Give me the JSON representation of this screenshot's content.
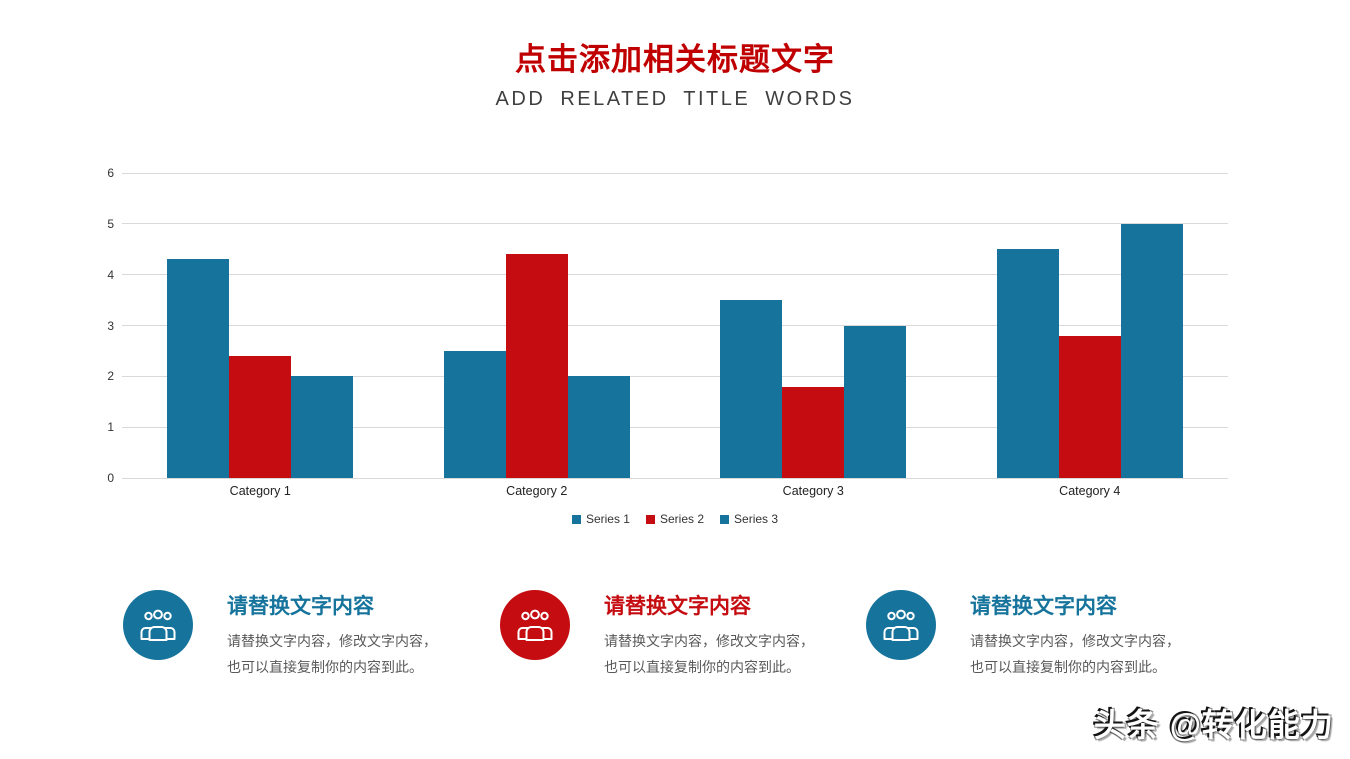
{
  "header": {
    "title": "点击添加相关标题文字",
    "subtitle": "ADD RELATED TITLE WORDS"
  },
  "chart_data": {
    "type": "bar",
    "title": "",
    "xlabel": "",
    "ylabel": "",
    "categories": [
      "Category 1",
      "Category 2",
      "Category 3",
      "Category 4"
    ],
    "series": [
      {
        "name": "Series 1",
        "color": "#16749c",
        "values": [
          4.3,
          2.5,
          3.5,
          4.5
        ]
      },
      {
        "name": "Series 2",
        "color": "#c50d11",
        "values": [
          2.4,
          4.4,
          1.8,
          2.8
        ]
      },
      {
        "name": "Series 3",
        "color": "#16749c",
        "values": [
          2.0,
          2.0,
          3.0,
          5.0
        ]
      }
    ],
    "ylim": [
      0,
      6
    ],
    "ytick_step": 1,
    "grid": true,
    "legend_position": "bottom"
  },
  "info_cards": [
    {
      "icon": "group-icon",
      "accent": "#16749c",
      "title": "请替换文字内容",
      "body_lines": [
        "请替换文字内容，修改文字内容，",
        "也可以直接复制你的内容到此。"
      ]
    },
    {
      "icon": "group-icon",
      "accent": "#c50d11",
      "title": "请替换文字内容",
      "body_lines": [
        "请替换文字内容，修改文字内容，",
        "也可以直接复制你的内容到此。"
      ]
    },
    {
      "icon": "group-icon",
      "accent": "#16749c",
      "title": "请替换文字内容",
      "body_lines": [
        "请替换文字内容，修改文字内容，",
        "也可以直接复制你的内容到此。"
      ]
    }
  ],
  "watermark": {
    "text": "头条 @转化能力"
  },
  "colors": {
    "title_red": "#c00000",
    "subtitle_gray": "#3f3f3f",
    "series_blue": "#16749c",
    "series_red": "#c50d11",
    "body_gray": "#595959",
    "gridline": "#d9d9d9"
  }
}
